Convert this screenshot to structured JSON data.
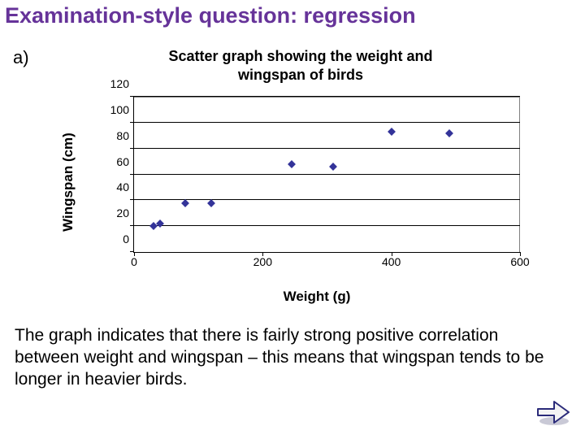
{
  "page": {
    "title": "Examination-style question: regression",
    "part_label": "a)"
  },
  "chart": {
    "type": "scatter",
    "title_line1": "Scatter graph showing the weight and",
    "title_line2": "wingspan of birds",
    "x_axis_label": "Weight (g)",
    "y_axis_label": "Wingspan (cm)",
    "xlim": [
      0,
      600
    ],
    "ylim": [
      0,
      120
    ],
    "x_ticks": [
      0,
      200,
      400,
      600
    ],
    "y_ticks": [
      0,
      20,
      40,
      60,
      80,
      100,
      120
    ],
    "y_gridlines": [
      20,
      40,
      60,
      80,
      100,
      120
    ],
    "gridline_color": "#000000",
    "axis_color": "#000000",
    "plot_border_color": "#808080",
    "background_color": "#ffffff",
    "marker_color": "#333399",
    "marker_shape": "diamond",
    "marker_size": 7,
    "tick_fontsize": 14,
    "label_fontsize": 17,
    "label_fontweight": "bold",
    "title_fontsize": 18,
    "title_fontweight": "bold",
    "points": [
      {
        "x": 30,
        "y": 20
      },
      {
        "x": 40,
        "y": 22
      },
      {
        "x": 80,
        "y": 38
      },
      {
        "x": 120,
        "y": 38
      },
      {
        "x": 245,
        "y": 68
      },
      {
        "x": 310,
        "y": 66
      },
      {
        "x": 400,
        "y": 93
      },
      {
        "x": 490,
        "y": 92
      }
    ]
  },
  "explain": {
    "text": "The graph indicates that there is fairly strong positive correlation between weight and wingspan – this means that wingspan tends to be longer in heavier birds."
  },
  "nav": {
    "next_label": "Next",
    "arrow_fill": "#f4f4f4",
    "arrow_stroke": "#2b2b7a"
  }
}
